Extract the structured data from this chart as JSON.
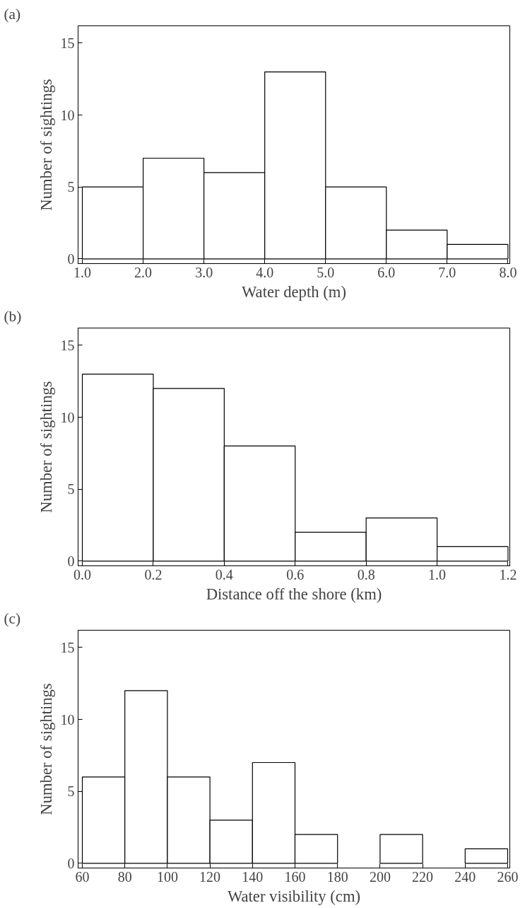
{
  "chart_data": [
    {
      "type": "histogram",
      "annotations": [
        "(a)"
      ],
      "xlabel": "Water depth (m)",
      "ylabel": "Number of sightings",
      "bins": [
        1,
        2,
        3,
        4,
        5,
        6,
        7,
        8
      ],
      "values": [
        5,
        7,
        6,
        13,
        5,
        2,
        1
      ],
      "color": "#ffffff",
      "xlim": [
        0.93,
        8.03
      ],
      "ylim": [
        -0.33,
        16.2
      ],
      "xticks": [
        {
          "value": 1,
          "label": "1.0"
        },
        {
          "value": 2,
          "label": "2.0"
        },
        {
          "value": 3,
          "label": "3.0"
        },
        {
          "value": 4,
          "label": "4.0"
        },
        {
          "value": 5,
          "label": "5.0"
        },
        {
          "value": 6,
          "label": "6.0"
        },
        {
          "value": 7,
          "label": "7.0"
        },
        {
          "value": 8,
          "label": "8.0"
        }
      ],
      "yticks": [
        0,
        5,
        10,
        15
      ],
      "grid": false
    },
    {
      "type": "histogram",
      "annotations": [
        "(b)"
      ],
      "xlabel": "Distance off the shore (km)",
      "ylabel": "Number of sightings",
      "bins": [
        0,
        0.2,
        0.4,
        0.6,
        0.8,
        1.0,
        1.2
      ],
      "values": [
        13,
        12,
        8,
        2,
        3,
        1
      ],
      "color": "#ffffff",
      "xlim": [
        -0.012,
        1.205
      ],
      "ylim": [
        -0.33,
        16.2
      ],
      "xticks": [
        {
          "value": 0,
          "label": "0.0"
        },
        0.2,
        0.4,
        0.6,
        0.8,
        {
          "value": 1,
          "label": "1.0"
        },
        1.2
      ],
      "yticks": [
        0,
        5,
        10,
        15
      ],
      "grid": false
    },
    {
      "type": "histogram",
      "annotations": [
        "(c)"
      ],
      "xlabel": "Water visibility (cm)",
      "ylabel": "Number of sightings",
      "bins": [
        60,
        80,
        100,
        120,
        140,
        160,
        180,
        200,
        220,
        240,
        260
      ],
      "values": [
        6,
        12,
        6,
        3,
        7,
        2,
        0,
        2,
        0,
        1
      ],
      "color": "#ffffff",
      "xlim": [
        58,
        261
      ],
      "ylim": [
        -0.33,
        16.2
      ],
      "xticks": [
        60,
        80,
        100,
        120,
        140,
        160,
        180,
        200,
        220,
        240,
        260
      ],
      "yticks": [
        0,
        5,
        10,
        15
      ],
      "grid": false
    }
  ]
}
